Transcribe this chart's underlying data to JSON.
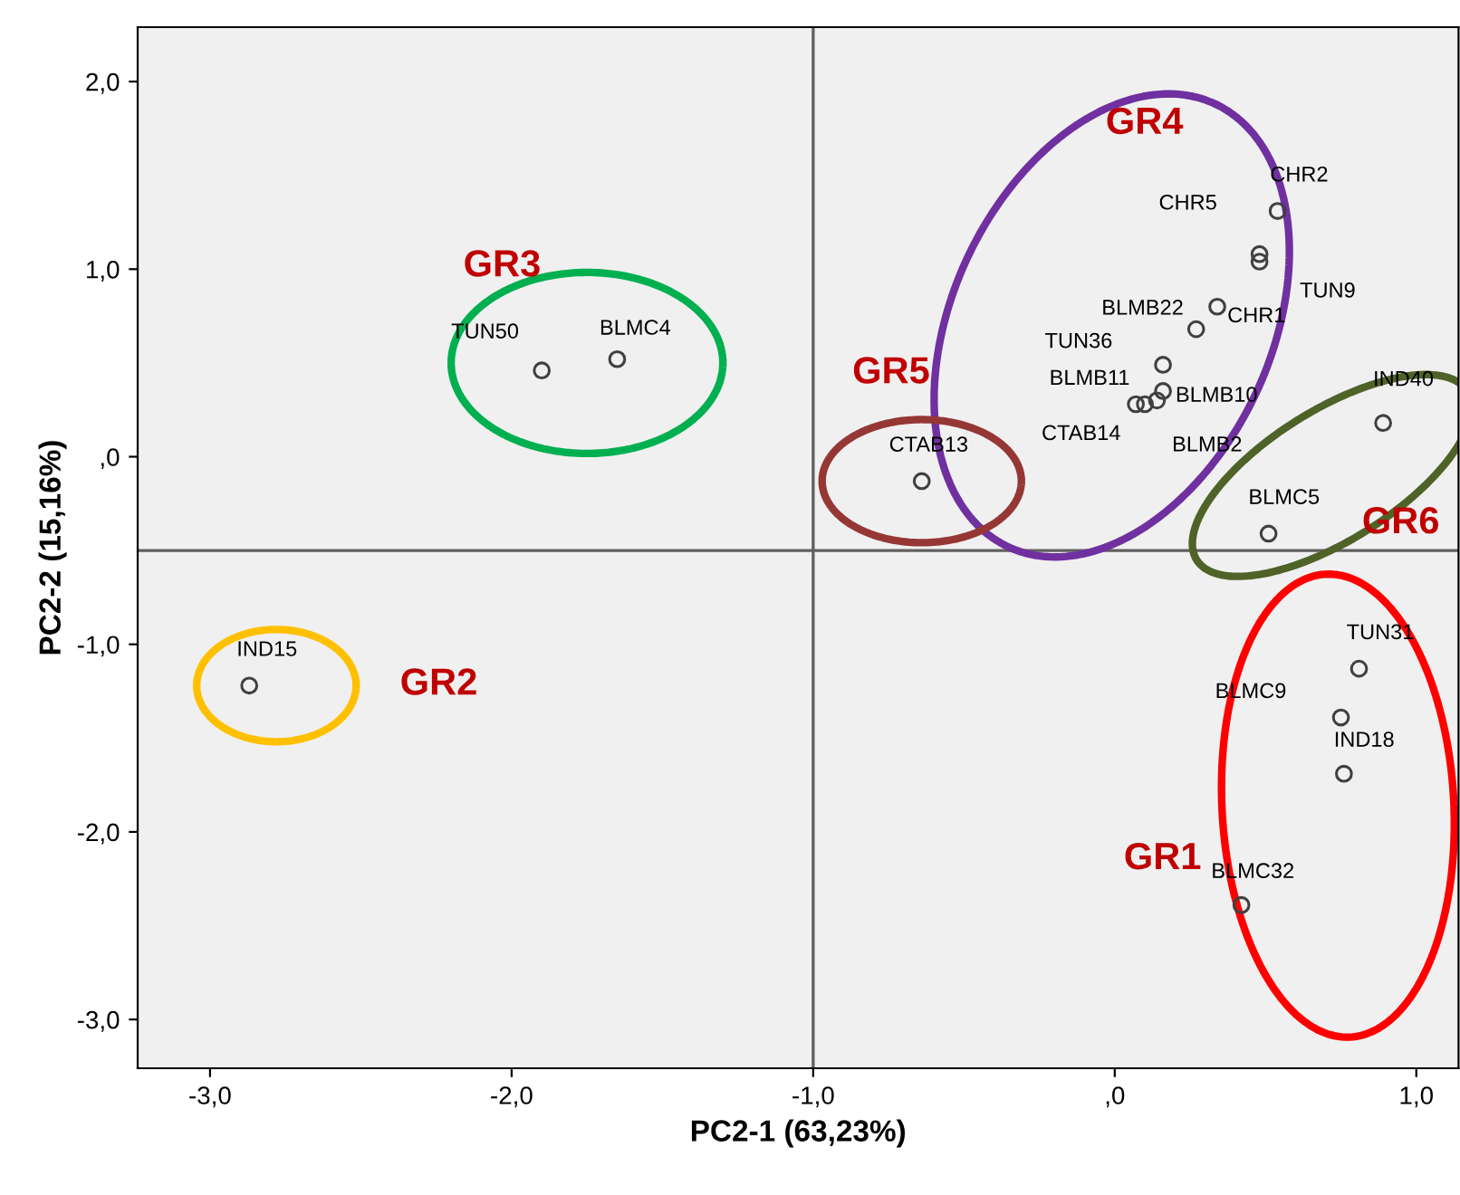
{
  "chart_data": {
    "type": "scatter",
    "xlabel": "PC2-1 (63,23%)",
    "ylabel": "PC2-2 (15,16%)",
    "x": [
      -1.9,
      -1.65,
      -2.87,
      -0.64,
      0.54,
      0.48,
      0.48,
      0.34,
      0.27,
      0.16,
      0.16,
      0.14,
      0.1,
      0.07,
      0.89,
      0.51,
      0.81,
      0.75,
      0.76,
      0.42
    ],
    "series": [
      {
        "color": "#404040",
        "values": [
          0.46,
          0.52,
          -1.22,
          -0.13,
          1.31,
          1.08,
          1.04,
          0.8,
          0.68,
          0.49,
          0.35,
          0.3,
          0.28,
          0.28,
          0.18,
          -0.41,
          -1.13,
          -1.39,
          -1.69,
          -2.39
        ]
      }
    ],
    "marker": "circle",
    "grid": false,
    "legend": false,
    "xlim": [
      -3.24,
      1.14
    ],
    "ylim": [
      -3.26,
      2.29
    ],
    "xticks": [
      {
        "value": -3,
        "label": "-3,0"
      },
      {
        "value": -2,
        "label": "-2,0"
      },
      {
        "value": -1,
        "label": "-1,0"
      },
      {
        "value": 0,
        "label": ",0"
      },
      {
        "value": 1,
        "label": "1,0"
      }
    ],
    "yticks": [
      {
        "value": -3,
        "label": "-3,0"
      },
      {
        "value": -2,
        "label": "-2,0"
      },
      {
        "value": -1,
        "label": "-1,0"
      },
      {
        "value": 0,
        "label": ",0"
      },
      {
        "value": 1,
        "label": "1,0"
      },
      {
        "value": 2,
        "label": "2,0"
      }
    ],
    "ref_lines": [
      {
        "axis": "x",
        "value": -1,
        "color": "#606060"
      },
      {
        "axis": "y",
        "value": -0.5,
        "color": "#606060"
      }
    ],
    "annotations": [
      {
        "text": "TUN50",
        "x": -1.9,
        "y": 0.46
      },
      {
        "text": "BLMC4",
        "x": -1.65,
        "y": 0.52
      },
      {
        "text": "IND15",
        "x": -2.87,
        "y": -1.22
      },
      {
        "text": "CTAB13",
        "x": -0.64,
        "y": -0.13
      },
      {
        "text": "CHR2",
        "x": 0.54,
        "y": 1.31
      },
      {
        "text": "CHR5",
        "x": 0.48,
        "y": 1.08
      },
      {
        "text": "TUN9",
        "x": 0.48,
        "y": 1.04
      },
      {
        "text": "CHR1",
        "x": 0.34,
        "y": 0.8
      },
      {
        "text": "BLMB22",
        "x": 0.27,
        "y": 0.68
      },
      {
        "text": "TUN36",
        "x": 0.16,
        "y": 0.49
      },
      {
        "text": "BLMB10",
        "x": 0.16,
        "y": 0.35
      },
      {
        "text": "BLMB2",
        "x": 0.14,
        "y": 0.3
      },
      {
        "text": "BLMB11",
        "x": 0.1,
        "y": 0.28
      },
      {
        "text": "CTAB14",
        "x": 0.07,
        "y": 0.28
      },
      {
        "text": "IND40",
        "x": 0.89,
        "y": 0.18
      },
      {
        "text": "BLMC5",
        "x": 0.51,
        "y": -0.41
      },
      {
        "text": "TUN31",
        "x": 0.81,
        "y": -1.13
      },
      {
        "text": "BLMC9",
        "x": 0.75,
        "y": -1.39
      },
      {
        "text": "IND18",
        "x": 0.76,
        "y": -1.69
      },
      {
        "text": "BLMC32",
        "x": 0.42,
        "y": -2.39
      },
      "GR4",
      "GR3",
      "GR5",
      "GR6",
      "GR2",
      "GR1"
    ]
  }
}
